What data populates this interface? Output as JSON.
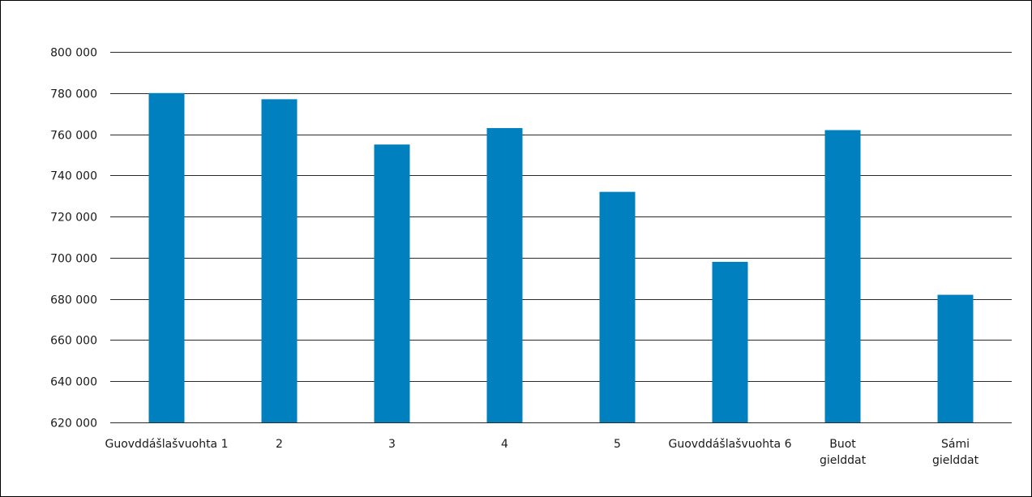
{
  "chart_data": {
    "type": "bar",
    "categories": [
      [
        "Guovddášlašvuohta 1"
      ],
      [
        "2"
      ],
      [
        "3"
      ],
      [
        "4"
      ],
      [
        "5"
      ],
      [
        "Guovddášlašvuohta 6"
      ],
      [
        "Buot",
        "gielddat"
      ],
      [
        "Sámi",
        "gielddat"
      ]
    ],
    "series": [
      {
        "values": [
          780000,
          777000,
          755000,
          763000,
          732000,
          698000,
          762000,
          682000
        ]
      }
    ],
    "ylim": [
      620000,
      800000
    ],
    "yticks": [
      620000,
      640000,
      660000,
      680000,
      700000,
      720000,
      740000,
      760000,
      780000,
      800000
    ],
    "ytick_labels": [
      "620 000",
      "640 000",
      "660 000",
      "680 000",
      "700 000",
      "720 000",
      "740 000",
      "760 000",
      "780 000",
      "800 000"
    ],
    "grid": true,
    "colors": {
      "bar": "#0080BF",
      "grid": "#2a2a2a"
    },
    "title": "",
    "xlabel": "",
    "ylabel": ""
  }
}
